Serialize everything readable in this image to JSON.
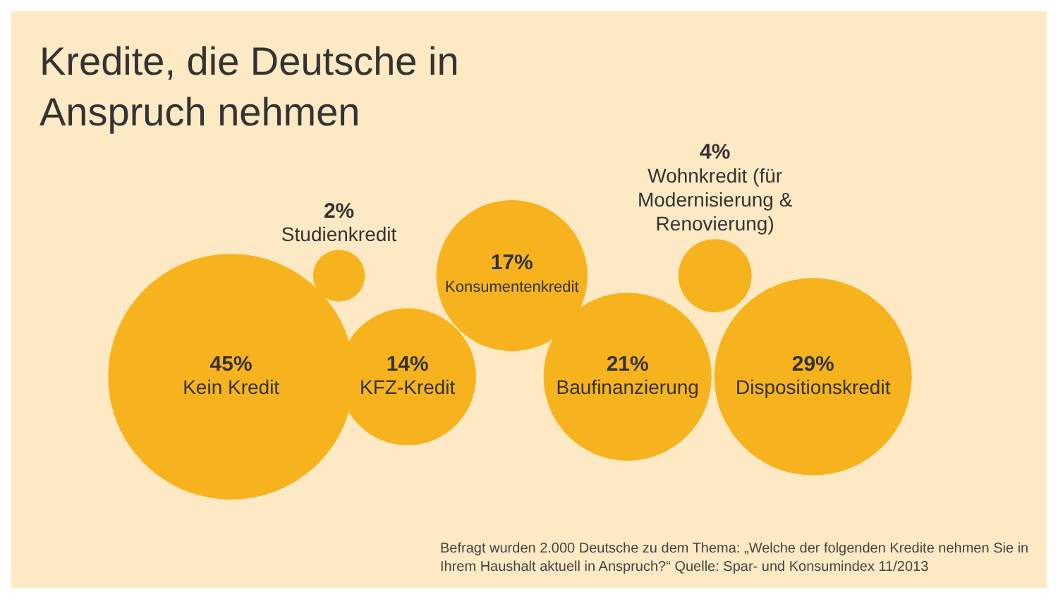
{
  "chart_data": {
    "type": "other",
    "title": "Kredite, die Deutsche in Anspruch nehmen",
    "categories": [
      "Kein Kredit",
      "Studienkredit",
      "KFZ-Kredit",
      "Konsumentenkredit",
      "Baufinanzierung",
      "Wohnkredit (für Modernisierung & Renovierung)",
      "Dispositionskredit"
    ],
    "values": [
      45,
      2,
      14,
      17,
      21,
      4,
      29
    ],
    "value_labels": [
      "45%",
      "2%",
      "14%",
      "17%",
      "21%",
      "4%",
      "29%"
    ],
    "color": "#f7b31e",
    "annotations": [
      "Befragt wurden 2.000 Deutsche zu dem Thema: „Welche der folgenden Kredite nehmen Sie in Ihrem Haushalt aktuell in Anspruch?“ Quelle: Spar- und Konsumindex 11/2013"
    ]
  }
}
